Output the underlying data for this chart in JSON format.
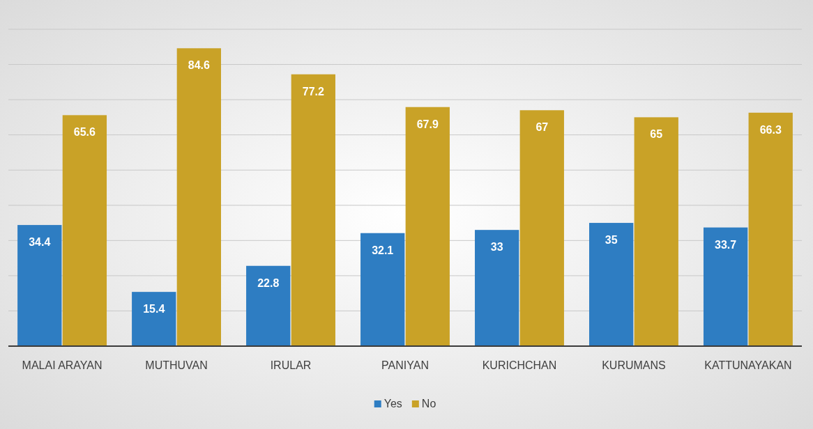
{
  "chart_data": {
    "type": "bar",
    "categories": [
      "MALAI ARAYAN",
      "MUTHUVAN",
      "IRULAR",
      "PANIYAN",
      "KURICHCHAN",
      "KURUMANS",
      "KATTUNAYAKAN"
    ],
    "series": [
      {
        "name": "Yes",
        "color": "#2e7dc2",
        "values": [
          34.4,
          15.4,
          22.8,
          32.1,
          33,
          35,
          33.7
        ]
      },
      {
        "name": "No",
        "color": "#c9a227",
        "values": [
          65.6,
          84.6,
          77.2,
          67.9,
          67,
          65,
          66.3
        ]
      }
    ],
    "ylim": [
      0,
      90
    ],
    "yticks": [
      {
        "value": 0,
        "label": null
      },
      {
        "value": 10,
        "label": null
      },
      {
        "value": 20,
        "label": null
      },
      {
        "value": 30,
        "label": null
      },
      {
        "value": 40,
        "label": null
      },
      {
        "value": 50,
        "label": null
      },
      {
        "value": 60,
        "label": null
      },
      {
        "value": 70,
        "label": null
      },
      {
        "value": 80,
        "label": null
      },
      {
        "value": 90,
        "label": null
      }
    ],
    "tick_labels": "x",
    "grid": "y",
    "legend": "bottom",
    "data_labels": true
  }
}
